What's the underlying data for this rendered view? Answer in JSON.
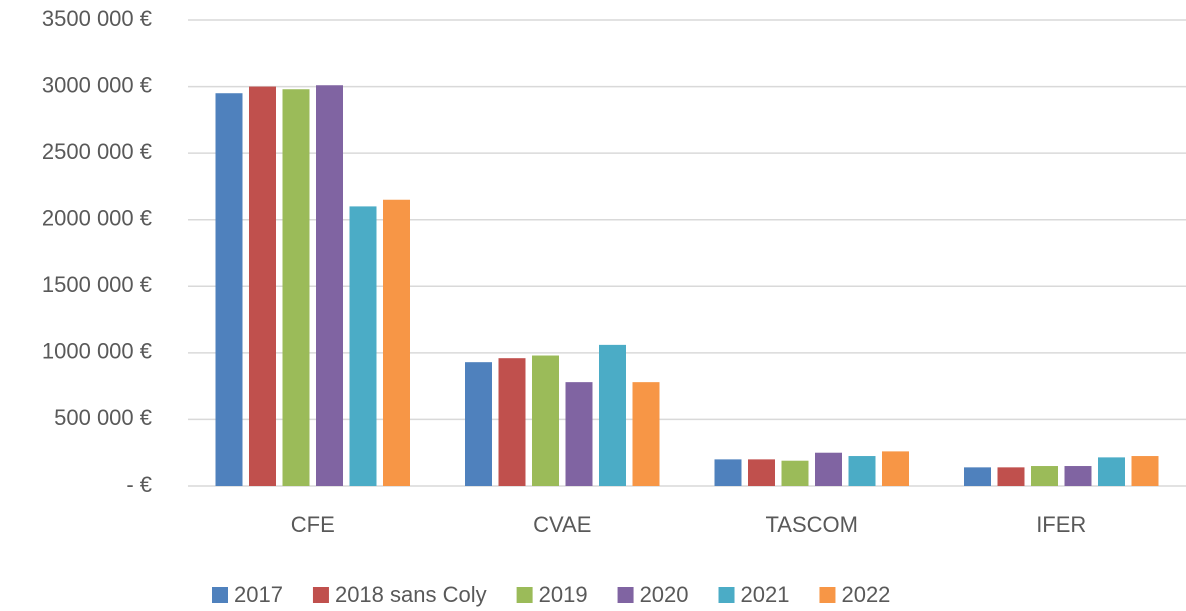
{
  "chart_data": {
    "type": "bar",
    "categories": [
      "CFE",
      "CVAE",
      "TASCOM",
      "IFER"
    ],
    "series": [
      {
        "name": "2017",
        "color": "#4f81bd",
        "values": [
          2950000,
          930000,
          200000,
          140000
        ]
      },
      {
        "name": "2018 sans Coly",
        "color": "#c0504d",
        "values": [
          3000000,
          960000,
          200000,
          140000
        ]
      },
      {
        "name": "2019",
        "color": "#9bbb59",
        "values": [
          2980000,
          980000,
          190000,
          150000
        ]
      },
      {
        "name": "2020",
        "color": "#8064a2",
        "values": [
          3010000,
          780000,
          250000,
          150000
        ]
      },
      {
        "name": "2021",
        "color": "#4bacc6",
        "values": [
          2100000,
          1060000,
          225000,
          215000
        ]
      },
      {
        "name": "2022",
        "color": "#f79646",
        "values": [
          2150000,
          780000,
          260000,
          225000
        ]
      }
    ],
    "ylim": [
      0,
      3500000
    ],
    "yticks": [
      {
        "value": 0,
        "label": "-   €"
      },
      {
        "value": 500000,
        "label": "500 000 €"
      },
      {
        "value": 1000000,
        "label": "1000 000 €"
      },
      {
        "value": 1500000,
        "label": "1500 000 €"
      },
      {
        "value": 2000000,
        "label": "2000 000 €"
      },
      {
        "value": 2500000,
        "label": "2500 000 €"
      },
      {
        "value": 3000000,
        "label": "3000 000 €"
      },
      {
        "value": 3500000,
        "label": "3500 000 €"
      }
    ],
    "grid": true,
    "legend": "bottom"
  }
}
